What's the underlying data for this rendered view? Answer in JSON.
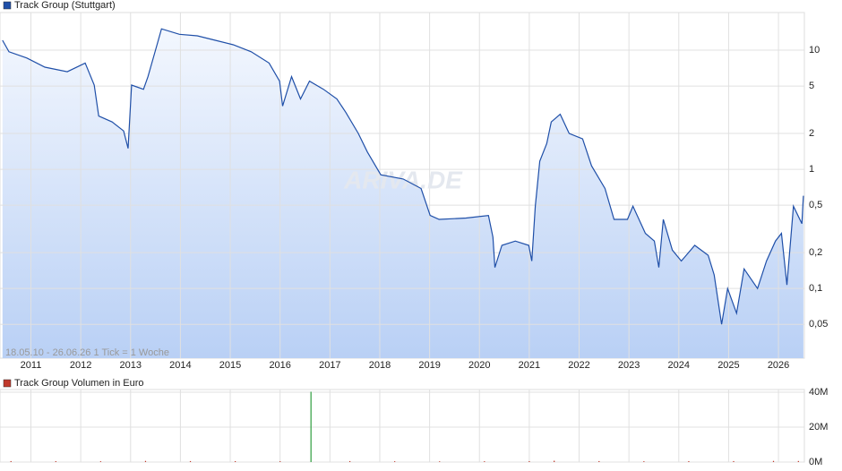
{
  "chart_data": [
    {
      "type": "line",
      "legend": "Track Group (Stuttgart)",
      "color": "#1f4fa8",
      "annotation": "18.05.10 - 26.06.26   1 Tick = 1 Woche",
      "watermark": "ARIVA.DE",
      "log_scale": true,
      "grid": true,
      "x": [
        2010.43,
        2010.56,
        2010.92,
        2011.28,
        2011.73,
        2012.09,
        2012.27,
        2012.36,
        2012.63,
        2012.86,
        2012.95,
        2013.02,
        2013.26,
        2013.35,
        2013.53,
        2013.62,
        2013.98,
        2014.34,
        2014.7,
        2015.06,
        2015.42,
        2015.78,
        2015.99,
        2016.05,
        2016.23,
        2016.41,
        2016.59,
        2016.87,
        2017.14,
        2017.32,
        2017.57,
        2017.75,
        2018.02,
        2018.47,
        2018.83,
        2019.01,
        2019.19,
        2019.73,
        2020.18,
        2020.27,
        2020.31,
        2020.45,
        2020.72,
        2020.99,
        2021.05,
        2021.12,
        2021.21,
        2021.35,
        2021.44,
        2021.62,
        2021.8,
        2022.07,
        2022.25,
        2022.52,
        2022.7,
        2022.97,
        2023.08,
        2023.33,
        2023.51,
        2023.6,
        2023.69,
        2023.87,
        2024.05,
        2024.32,
        2024.59,
        2024.71,
        2024.86,
        2024.98,
        2025.16,
        2025.31,
        2025.58,
        2025.76,
        2025.94,
        2026.06,
        2026.17,
        2026.3,
        2026.47,
        2026.5
      ],
      "values": [
        12.1,
        9.7,
        8.6,
        7.2,
        6.6,
        7.8,
        5.1,
        2.8,
        2.5,
        2.1,
        1.5,
        5.1,
        4.7,
        6.0,
        11.1,
        15.1,
        13.6,
        13.2,
        12.1,
        11.1,
        9.7,
        7.8,
        5.5,
        3.4,
        6.0,
        3.9,
        5.5,
        4.7,
        3.9,
        3.0,
        2.0,
        1.4,
        0.9,
        0.83,
        0.69,
        0.41,
        0.38,
        0.39,
        0.41,
        0.27,
        0.15,
        0.23,
        0.25,
        0.23,
        0.17,
        0.49,
        1.17,
        1.65,
        2.5,
        2.9,
        2.0,
        1.8,
        1.07,
        0.69,
        0.38,
        0.38,
        0.49,
        0.29,
        0.25,
        0.15,
        0.38,
        0.21,
        0.17,
        0.23,
        0.19,
        0.13,
        0.05,
        0.1,
        0.062,
        0.146,
        0.1,
        0.17,
        0.25,
        0.29,
        0.107,
        0.49,
        0.35,
        0.6
      ],
      "xlim": [
        2010.38,
        2026.52
      ],
      "ylim": [
        0.026,
        20.7
      ],
      "xticks": [
        2011,
        2012,
        2013,
        2014,
        2015,
        2016,
        2017,
        2018,
        2019,
        2020,
        2021,
        2022,
        2023,
        2024,
        2025,
        2026
      ],
      "yticks": [
        {
          "value": 0.05,
          "label": "0,05"
        },
        {
          "value": 0.1,
          "label": "0,1"
        },
        {
          "value": 0.2,
          "label": "0,2"
        },
        {
          "value": 0.5,
          "label": "0,5"
        },
        1,
        2,
        5,
        10
      ]
    },
    {
      "type": "bar",
      "legend": "Track Group Volumen in Euro",
      "color": "#c0392b",
      "grid": true,
      "x": [
        2010.6,
        2011.5,
        2012.4,
        2013.3,
        2014.2,
        2015.1,
        2016.0,
        2016.62,
        2017.4,
        2018.3,
        2019.2,
        2020.1,
        2021.0,
        2021.5,
        2022.4,
        2023.3,
        2024.2,
        2025.1,
        2025.9,
        2026.4
      ],
      "values": [
        300000,
        250000,
        200000,
        400000,
        300000,
        250000,
        200000,
        40000000,
        300000,
        200000,
        150000,
        200000,
        250000,
        500000,
        300000,
        200000,
        250000,
        300000,
        400000,
        350000
      ],
      "colors": [
        "#c0392b",
        "#c0392b",
        "#c0392b",
        "#c0392b",
        "#c0392b",
        "#c0392b",
        "#c0392b",
        "#2e9e3e",
        "#c0392b",
        "#c0392b",
        "#c0392b",
        "#c0392b",
        "#c0392b",
        "#c0392b",
        "#c0392b",
        "#c0392b",
        "#c0392b",
        "#c0392b",
        "#c0392b",
        "#c0392b"
      ],
      "xlim": [
        2010.38,
        2026.52
      ],
      "ylim": [
        0,
        40500000
      ],
      "yticks": [
        {
          "value": 0,
          "label": "0M"
        },
        {
          "value": 20000000,
          "label": "20M"
        },
        {
          "value": 40000000,
          "label": "40M"
        }
      ]
    }
  ]
}
